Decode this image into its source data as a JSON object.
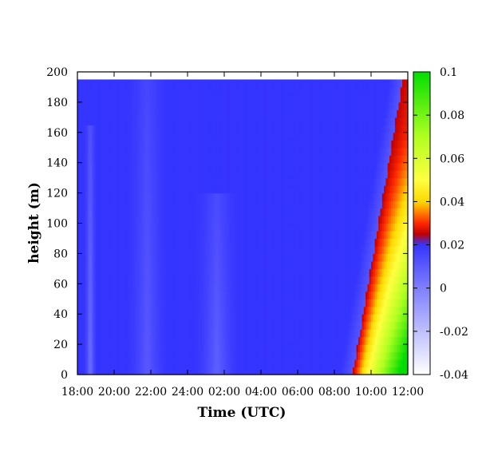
{
  "chart_data": {
    "type": "heatmap",
    "title": "",
    "xlabel": "Time (UTC)",
    "ylabel": "height (m)",
    "x_range_hours": [
      18,
      36
    ],
    "x_ticks": [
      "18:00",
      "20:00",
      "22:00",
      "24:00",
      "02:00",
      "04:00",
      "06:00",
      "08:00",
      "10:00",
      "12:00"
    ],
    "ylim": [
      0,
      200
    ],
    "y_ticks": [
      "0",
      "20",
      "40",
      "60",
      "80",
      "100",
      "120",
      "140",
      "160",
      "180",
      "200"
    ],
    "data_top_height": 195,
    "colorbar": {
      "range": [
        -0.04,
        0.1
      ],
      "ticks": [
        "-0.04",
        "-0.02",
        "0",
        "0.02",
        "0.04",
        "0.06",
        "0.08",
        "0.1"
      ],
      "colors": [
        {
          "value": -0.04,
          "color": "#ffffff"
        },
        {
          "value": 0.0,
          "color": "#7f7fff"
        },
        {
          "value": 0.02,
          "color": "#3535ff"
        },
        {
          "value": 0.025,
          "color": "#c00000"
        },
        {
          "value": 0.03,
          "color": "#ff2800"
        },
        {
          "value": 0.04,
          "color": "#ffd800"
        },
        {
          "value": 0.05,
          "color": "#ffff40"
        },
        {
          "value": 0.07,
          "color": "#b0ff20"
        },
        {
          "value": 0.1,
          "color": "#00dd00"
        }
      ]
    },
    "field": {
      "background_value": 0.02,
      "front_base_time_hours": 33.0,
      "front_slope_hours_per_100m": 1.4,
      "pale_bands": [
        {
          "center_hours": 18.7,
          "half_width_hours": 0.35,
          "top_height": 165,
          "value": 0.003
        },
        {
          "center_hours": 21.8,
          "half_width_hours": 1.1,
          "top_height": 195,
          "value": 0.01
        },
        {
          "center_hours": 25.6,
          "half_width_hours": 1.2,
          "top_height": 120,
          "value": 0.008
        }
      ]
    }
  }
}
